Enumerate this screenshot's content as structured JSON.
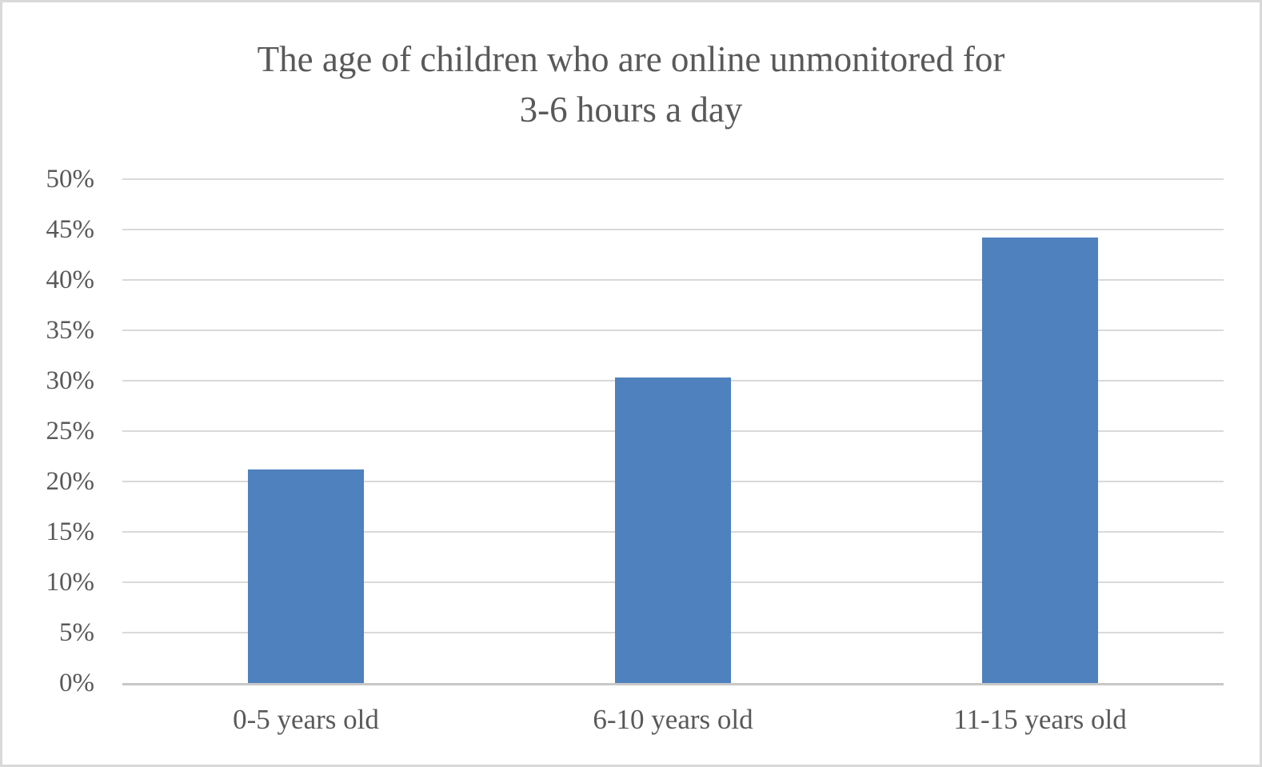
{
  "chart_data": {
    "type": "bar",
    "title": "The age of children who are online unmonitored for 3-6 hours a day",
    "title_lines": [
      "The age of children who are online unmonitored for",
      "3-6 hours a day"
    ],
    "categories": [
      "0-5 years old",
      "6-10 years old",
      "11-15 years old"
    ],
    "values": [
      21.2,
      30.3,
      44.2
    ],
    "value_unit": "%",
    "xlabel": "",
    "ylabel": "",
    "ylim": [
      0,
      50
    ],
    "ytick_interval": 5,
    "ytick_labels_bottom_to_top": [
      "0%",
      "5%",
      "10%",
      "15%",
      "20%",
      "25%",
      "30%",
      "35%",
      "40%",
      "45%",
      "50%"
    ],
    "grid": "horizontal",
    "legend": false
  },
  "colors": {
    "bar_fill": "#4E81BD",
    "gridline": "#D9D9D9",
    "axis_line": "#C8C8C8",
    "text": "#595959",
    "frame_border": "#D9D9D9",
    "background": "#FFFFFF"
  }
}
